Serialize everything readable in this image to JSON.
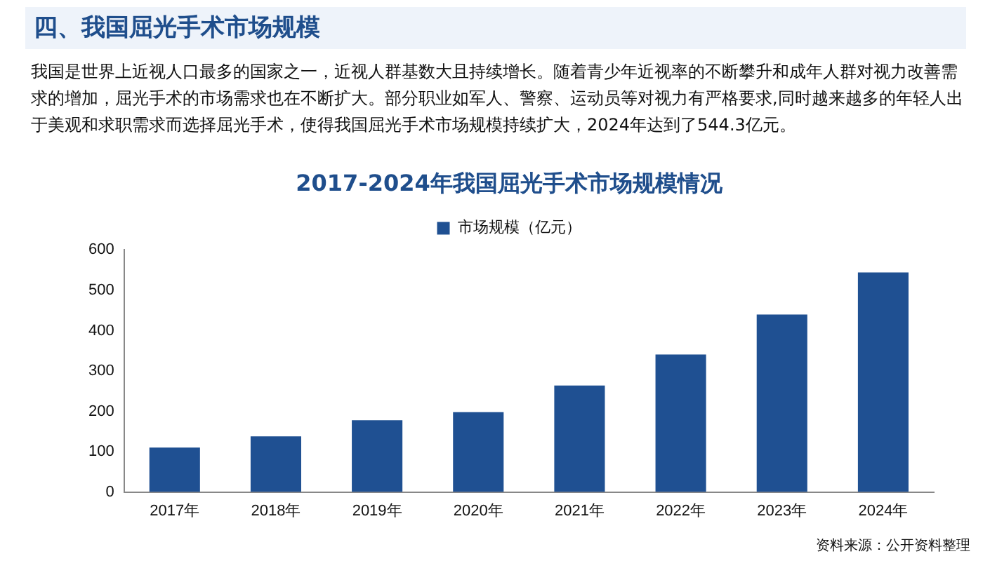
{
  "chart_data": {
    "type": "bar",
    "title": "2017-2024年我国屈光手术市场规模情况",
    "categories": [
      "2017年",
      "2018年",
      "2019年",
      "2020年",
      "2021年",
      "2022年",
      "2023年",
      "2024年"
    ],
    "series": [
      {
        "name": "市场规模（亿元）",
        "color": "#1f5092",
        "values": [
          110,
          138,
          178,
          198,
          264,
          341,
          440,
          544.3
        ]
      }
    ],
    "ylim": [
      0,
      600
    ],
    "yticks": [
      0,
      100,
      200,
      300,
      400,
      500,
      600
    ],
    "grid": false,
    "legend": "top",
    "annotations": [
      "四、我国屈光手术市场规模",
      "我国是世界上近视人口最多的国家之一，近视人群基数大且持续增长。随着青少年近视率的不断攀升和成年人群对视力改善需求的增加，屈光手术的市场需求也在不断扩大。部分职业如军人、警察、运动员等对视力有严格要求,同时越来越多的年轻人出于美观和求职需求而选择屈光手术，使得我国屈光手术市场规模持续扩大，2024年达到了544.3亿元。",
      "资料来源：公开资料整理"
    ]
  }
}
